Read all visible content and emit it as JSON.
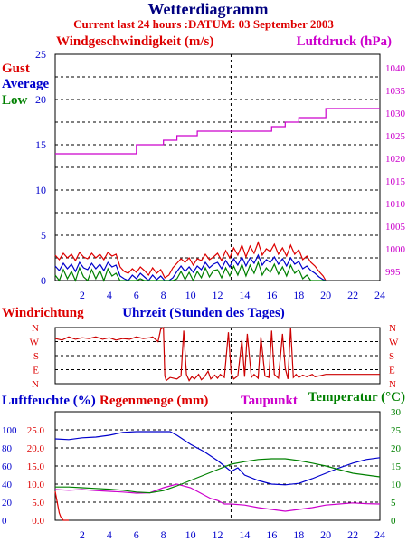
{
  "header": {
    "title": "Wetterdiagramm",
    "subtitle": "Current last 24 hours :DATUM: 03 September 2003"
  },
  "colors": {
    "title": "#000080",
    "red": "#dd0000",
    "blue": "#0000cc",
    "green": "#008000",
    "magenta": "#cc00cc",
    "grid": "#000000"
  },
  "chart_data": [
    {
      "type": "line",
      "id": "wind",
      "title": "Windgeschwindigkeit (m/s)",
      "title_right": "Luftdruck (hPa)",
      "xlim": [
        0,
        24
      ],
      "ylim": [
        0,
        25
      ],
      "ylim_right": [
        993,
        1043
      ],
      "x_ticks": [
        2,
        4,
        6,
        8,
        10,
        12,
        14,
        16,
        18,
        20,
        22,
        24
      ],
      "y_ticks": [
        0,
        5,
        10,
        15,
        20,
        25
      ],
      "y_ticks_right": [
        995,
        1000,
        1005,
        1010,
        1015,
        1020,
        1025,
        1030,
        1035,
        1040
      ],
      "grid": true,
      "legend_position": "top-left",
      "series": [
        {
          "name": "Gust",
          "axis": "left",
          "color": "#dd0000",
          "x": [
            0,
            0.3,
            0.6,
            0.9,
            1.2,
            1.5,
            1.8,
            2.1,
            2.4,
            2.7,
            3,
            3.3,
            3.6,
            3.9,
            4.2,
            4.5,
            4.8,
            5.1,
            5.4,
            5.7,
            6,
            6.3,
            6.6,
            6.9,
            7.2,
            7.5,
            7.8,
            8.1,
            8.4,
            8.7,
            9,
            9.3,
            9.6,
            9.9,
            10.2,
            10.5,
            10.8,
            11.1,
            11.4,
            11.7,
            12,
            12.3,
            12.6,
            12.9,
            13.2,
            13.5,
            13.8,
            14.1,
            14.4,
            14.7,
            15,
            15.3,
            15.6,
            15.9,
            16.2,
            16.5,
            16.8,
            17.1,
            17.4,
            17.7,
            18,
            18.3,
            18.6,
            18.9,
            19.2,
            19.5,
            19.8,
            20
          ],
          "values": [
            2.8,
            2.3,
            3.0,
            2.5,
            2.9,
            2.2,
            3.1,
            2.6,
            2.4,
            3.0,
            2.5,
            2.9,
            2.3,
            3.1,
            2.7,
            2.9,
            1.5,
            1.0,
            0.8,
            1.3,
            0.9,
            1.5,
            1.1,
            0.6,
            1.4,
            0.8,
            1.2,
            0.3,
            0.6,
            1.4,
            1.9,
            2.4,
            2.0,
            2.5,
            1.7,
            2.4,
            2.2,
            2.9,
            2.3,
            2.6,
            3.0,
            2.2,
            3.3,
            2.5,
            3.6,
            2.8,
            3.9,
            2.6,
            3.8,
            3.0,
            4.2,
            2.8,
            3.5,
            3.2,
            4.0,
            2.9,
            3.6,
            2.7,
            3.9,
            2.9,
            3.4,
            2.3,
            2.7,
            2.0,
            1.6,
            1.0,
            0.5,
            0.0
          ]
        },
        {
          "name": "Average",
          "axis": "left",
          "color": "#0000cc",
          "x": [
            0,
            0.3,
            0.6,
            0.9,
            1.2,
            1.5,
            1.8,
            2.1,
            2.4,
            2.7,
            3,
            3.3,
            3.6,
            3.9,
            4.2,
            4.5,
            4.8,
            5.1,
            5.4,
            5.7,
            6,
            6.3,
            6.6,
            6.9,
            7.2,
            7.5,
            7.8,
            8.1,
            8.4,
            8.7,
            9,
            9.3,
            9.6,
            9.9,
            10.2,
            10.5,
            10.8,
            11.1,
            11.4,
            11.7,
            12,
            12.3,
            12.6,
            12.9,
            13.2,
            13.5,
            13.8,
            14.1,
            14.4,
            14.7,
            15,
            15.3,
            15.6,
            15.9,
            16.2,
            16.5,
            16.8,
            17.1,
            17.4,
            17.7,
            18,
            18.3,
            18.6,
            18.9,
            19.2,
            19.5,
            19.8,
            20
          ],
          "values": [
            1.6,
            1.1,
            1.9,
            1.3,
            1.8,
            1.0,
            2.0,
            1.4,
            1.2,
            1.9,
            1.3,
            1.8,
            1.1,
            2.0,
            1.5,
            1.7,
            0.5,
            0.2,
            0.0,
            0.6,
            0.2,
            0.8,
            0.4,
            0.0,
            0.6,
            0.1,
            0.5,
            0.0,
            0.0,
            0.3,
            1.0,
            1.6,
            1.0,
            1.5,
            0.9,
            1.6,
            1.2,
            2.0,
            1.4,
            1.8,
            2.0,
            1.3,
            2.2,
            1.5,
            2.4,
            1.7,
            2.6,
            1.6,
            2.5,
            1.9,
            2.8,
            1.7,
            2.3,
            2.0,
            2.6,
            1.8,
            2.4,
            1.6,
            2.5,
            1.8,
            2.1,
            1.3,
            1.6,
            1.1,
            0.8,
            0.4,
            0.1,
            0.0
          ]
        },
        {
          "name": "Low",
          "axis": "left",
          "color": "#008000",
          "x": [
            0,
            0.3,
            0.6,
            0.9,
            1.2,
            1.5,
            1.8,
            2.1,
            2.4,
            2.7,
            3,
            3.3,
            3.6,
            3.9,
            4.2,
            4.5,
            4.8,
            5.1,
            5.4,
            5.7,
            6,
            6.3,
            6.6,
            6.9,
            7.2,
            7.5,
            7.8,
            8.1,
            8.4,
            8.7,
            9,
            9.3,
            9.6,
            9.9,
            10.2,
            10.5,
            10.8,
            11.1,
            11.4,
            11.7,
            12,
            12.3,
            12.6,
            12.9,
            13.2,
            13.5,
            13.8,
            14.1,
            14.4,
            14.7,
            15,
            15.3,
            15.6,
            15.9,
            16.2,
            16.5,
            16.8,
            17.1,
            17.4,
            17.7,
            18,
            18.3,
            18.6,
            18.9,
            19.2,
            19.5,
            19.8,
            20
          ],
          "values": [
            0.6,
            0.0,
            1.2,
            0.2,
            1.0,
            0.0,
            1.4,
            0.4,
            0.0,
            1.2,
            0.2,
            1.1,
            0.0,
            1.3,
            0.5,
            0.8,
            0.0,
            0.0,
            0.0,
            0.0,
            0.0,
            0.2,
            0.0,
            0.0,
            0.0,
            0.0,
            0.0,
            0.0,
            0.0,
            0.0,
            0.2,
            1.0,
            0.1,
            0.9,
            0.0,
            1.0,
            0.3,
            1.4,
            0.4,
            1.1,
            1.2,
            0.3,
            1.4,
            0.5,
            1.6,
            0.6,
            1.8,
            0.5,
            1.7,
            0.8,
            2.0,
            0.6,
            1.4,
            0.9,
            1.8,
            0.7,
            1.5,
            0.5,
            1.7,
            0.8,
            1.2,
            0.2,
            0.6,
            0.0,
            0.0,
            0.0,
            0.0,
            0.0
          ]
        },
        {
          "name": "Luftdruck",
          "axis": "right",
          "color": "#cc00cc",
          "x": [
            0,
            6,
            6,
            8,
            8,
            9,
            9,
            10.5,
            10.5,
            16,
            16,
            17,
            17,
            18,
            18,
            20,
            20,
            24
          ],
          "values": [
            1021,
            1021,
            1023,
            1023,
            1024,
            1024,
            1025,
            1025,
            1026,
            1026,
            1027,
            1027,
            1028,
            1028,
            1029,
            1029,
            1031,
            1031
          ]
        }
      ]
    },
    {
      "type": "line",
      "id": "winddir",
      "title": "Windrichtung",
      "xlabel": "Uhrzeit (Stunden des Tages)",
      "xlim": [
        0,
        24
      ],
      "y_categories": [
        "N",
        "W",
        "S",
        "E",
        "N"
      ],
      "y_tick_values": [
        360,
        270,
        180,
        90,
        0
      ],
      "grid": true,
      "series": [
        {
          "name": "Windrichtung",
          "color": "#cc0000",
          "x": [
            0,
            0.5,
            1,
            1.5,
            2,
            2.5,
            3,
            3.5,
            4,
            4.5,
            5,
            5.5,
            6,
            6.5,
            7,
            7.2,
            7.6,
            7.8,
            8,
            8.1,
            8.2,
            8.5,
            9,
            9.3,
            9.5,
            9.7,
            9.9,
            10.1,
            10.3,
            10.6,
            10.8,
            11,
            11.3,
            11.5,
            11.8,
            12,
            12.2,
            12.5,
            12.8,
            13,
            13.2,
            13.5,
            13.8,
            14,
            14.2,
            14.5,
            14.7,
            15,
            15.2,
            15.5,
            15.8,
            16,
            16.2,
            16.5,
            16.8,
            17,
            17.2,
            17.4,
            17.6,
            17.8,
            18,
            18.3,
            18.6,
            19,
            19.2,
            19.5,
            20,
            24
          ],
          "values": [
            290,
            280,
            300,
            285,
            295,
            290,
            300,
            285,
            295,
            280,
            290,
            285,
            300,
            290,
            295,
            300,
            270,
            350,
            360,
            50,
            20,
            40,
            30,
            50,
            340,
            60,
            20,
            45,
            30,
            60,
            25,
            40,
            80,
            30,
            55,
            35,
            60,
            40,
            330,
            70,
            30,
            50,
            280,
            45,
            320,
            40,
            60,
            35,
            300,
            50,
            40,
            340,
            60,
            35,
            320,
            100,
            30,
            360,
            40,
            60,
            40,
            55,
            45,
            60,
            45,
            50,
            60,
            60
          ]
        }
      ]
    },
    {
      "type": "line",
      "id": "humidity",
      "title": "Luftfeuchte (%)",
      "title_2": "Regenmenge (mm)",
      "title_3": "Taupunkt",
      "title_right": "Temperatur (°C)",
      "xlim": [
        0,
        24
      ],
      "x_ticks": [
        2,
        4,
        6,
        8,
        10,
        12,
        14,
        16,
        18,
        20,
        22,
        24
      ],
      "y_ticks_humidity": [
        0,
        20,
        40,
        60,
        80,
        100
      ],
      "y_ticks_rain": [
        0.0,
        5.0,
        10.0,
        15.0,
        20.0,
        25.0
      ],
      "ylim_rain": [
        0,
        30
      ],
      "ylim_right": [
        0,
        30
      ],
      "y_ticks_right": [
        0,
        5,
        10,
        15,
        20,
        25,
        30
      ],
      "grid": true,
      "series": [
        {
          "name": "Luftfeuchte",
          "axis": "rain",
          "color": "#0000cc",
          "x": [
            0,
            1,
            2,
            3,
            4,
            5,
            6,
            7,
            8,
            8.5,
            9,
            10,
            11,
            12,
            12.5,
            13,
            13.5,
            14,
            15,
            16,
            17,
            18,
            19,
            20,
            21,
            22,
            23,
            24
          ],
          "values": [
            22.5,
            22.3,
            22.8,
            23.0,
            23.5,
            24.3,
            24.5,
            24.5,
            24.5,
            24.5,
            23.5,
            21.0,
            19.0,
            16.5,
            15.0,
            13.5,
            14.5,
            12.5,
            11.0,
            10.0,
            9.8,
            10.2,
            11.5,
            13.0,
            14.5,
            15.8,
            16.8,
            17.3
          ]
        },
        {
          "name": "Regenmenge",
          "axis": "rain",
          "color": "#dd0000",
          "x": [
            0,
            0.1,
            0.2,
            0.3,
            0.4,
            0.5,
            0.6,
            1
          ],
          "values": [
            8,
            6,
            4,
            2,
            1,
            0.5,
            0,
            0
          ]
        },
        {
          "name": "Taupunkt",
          "axis": "right",
          "color": "#cc00cc",
          "x": [
            0,
            1,
            2,
            3,
            4,
            5,
            6,
            7,
            8,
            9,
            10,
            10.5,
            11,
            11.5,
            12,
            12.5,
            13,
            14,
            15,
            16,
            17,
            18,
            19,
            20,
            21,
            22,
            23,
            24
          ],
          "values": [
            8.5,
            8.3,
            8.5,
            8.2,
            8.0,
            7.8,
            7.5,
            7.6,
            9.0,
            10.0,
            9.0,
            8.0,
            7.0,
            6.0,
            5.5,
            4.5,
            4.5,
            4.2,
            3.5,
            3.0,
            2.5,
            3.0,
            3.5,
            4.2,
            4.5,
            4.8,
            4.6,
            4.5
          ]
        },
        {
          "name": "Temperatur",
          "axis": "right",
          "color": "#008000",
          "x": [
            0,
            1,
            2,
            3,
            4,
            5,
            6,
            7,
            8,
            9,
            10,
            11,
            12,
            13,
            14,
            15,
            16,
            17,
            18,
            19,
            20,
            21,
            22,
            23,
            24
          ],
          "values": [
            9.2,
            9.2,
            9.0,
            8.8,
            8.6,
            8.3,
            7.8,
            7.6,
            8.2,
            9.5,
            11.0,
            12.5,
            14.0,
            15.5,
            16.2,
            16.8,
            17.0,
            17.0,
            16.5,
            15.8,
            15.0,
            14.0,
            13.0,
            12.5,
            12.0
          ]
        }
      ]
    }
  ]
}
